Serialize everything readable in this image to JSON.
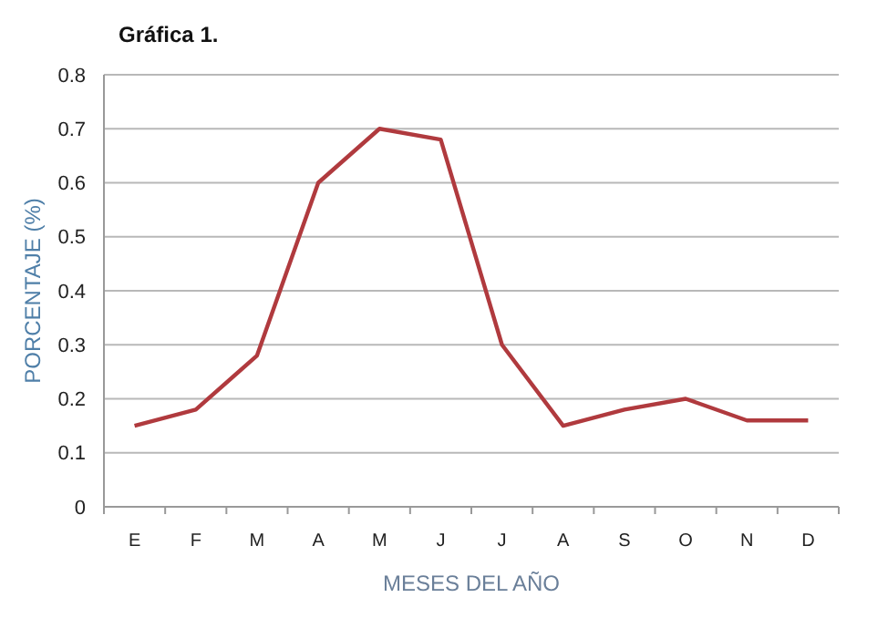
{
  "chart_data": {
    "type": "line",
    "title": "Gráfica 1.",
    "xlabel": "MESES DEL AÑO",
    "ylabel": "PORCENTAJE (%)",
    "categories": [
      "E",
      "F",
      "M",
      "A",
      "M",
      "J",
      "J",
      "A",
      "S",
      "O",
      "N",
      "D"
    ],
    "series": [
      {
        "color": "#b03a3e",
        "values": [
          0.15,
          0.18,
          0.28,
          0.6,
          0.7,
          0.68,
          0.3,
          0.15,
          0.18,
          0.2,
          0.16,
          0.16
        ]
      }
    ],
    "ylim": [
      0,
      0.8
    ],
    "yticks": [
      0,
      0.1,
      0.2,
      0.3,
      0.4,
      0.5,
      0.6,
      0.7,
      0.8
    ],
    "grid": "y",
    "marker": "none",
    "line_style": "solid"
  }
}
